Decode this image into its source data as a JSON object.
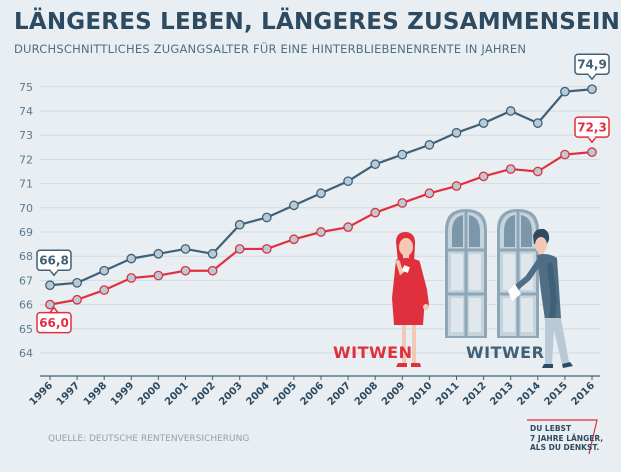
{
  "header": {
    "title": "LÄNGERES LEBEN, LÄNGERES ZUSAMMENSEIN",
    "subtitle": "DURCHSCHNITTLICHES ZUGANGSALTER FÜR EINE HINTERBLIEBENENRENTE IN JAHREN"
  },
  "footer": {
    "source": "QUELLE: DEUTSCHE RENTENVERSICHERUNG",
    "slogan_lines": [
      "DU LEBST",
      "7 JAHRE LÄNGER,",
      "ALS DU DENKST."
    ],
    "accent": "#e0303e"
  },
  "colors": {
    "witwer": "#3f6077",
    "witwen": "#e0303e",
    "marker_fill": "#b9cad6",
    "grid": "#d2dbe2"
  },
  "illustration": {
    "icons": [
      "woman-crying-icon",
      "man-with-tissue-icon",
      "window-icon"
    ]
  },
  "chart_data": {
    "type": "line",
    "x": [
      1996,
      1997,
      1998,
      1999,
      2000,
      2001,
      2002,
      2003,
      2004,
      2005,
      2006,
      2007,
      2008,
      2009,
      2010,
      2011,
      2012,
      2013,
      2014,
      2015,
      2016
    ],
    "y_ticks": [
      64,
      65,
      66,
      67,
      68,
      69,
      70,
      71,
      72,
      73,
      74,
      75
    ],
    "ylim": [
      63.5,
      75.5
    ],
    "grid": true,
    "series": [
      {
        "name": "WITWER",
        "color": "#3f6077",
        "values": [
          66.8,
          66.9,
          67.4,
          67.9,
          68.1,
          68.3,
          68.1,
          69.3,
          69.6,
          70.1,
          70.6,
          71.1,
          71.8,
          72.2,
          72.6,
          73.1,
          73.5,
          74.0,
          73.5,
          74.8,
          74.9
        ],
        "start_label": "66,8",
        "end_label": "74,9"
      },
      {
        "name": "WITWEN",
        "color": "#e0303e",
        "values": [
          66.0,
          66.2,
          66.6,
          67.1,
          67.2,
          67.4,
          67.4,
          68.3,
          68.3,
          68.7,
          69.0,
          69.2,
          69.8,
          70.2,
          70.6,
          70.9,
          71.3,
          71.6,
          71.5,
          72.2,
          72.3
        ],
        "start_label": "66,0",
        "end_label": "72,3"
      }
    ]
  }
}
